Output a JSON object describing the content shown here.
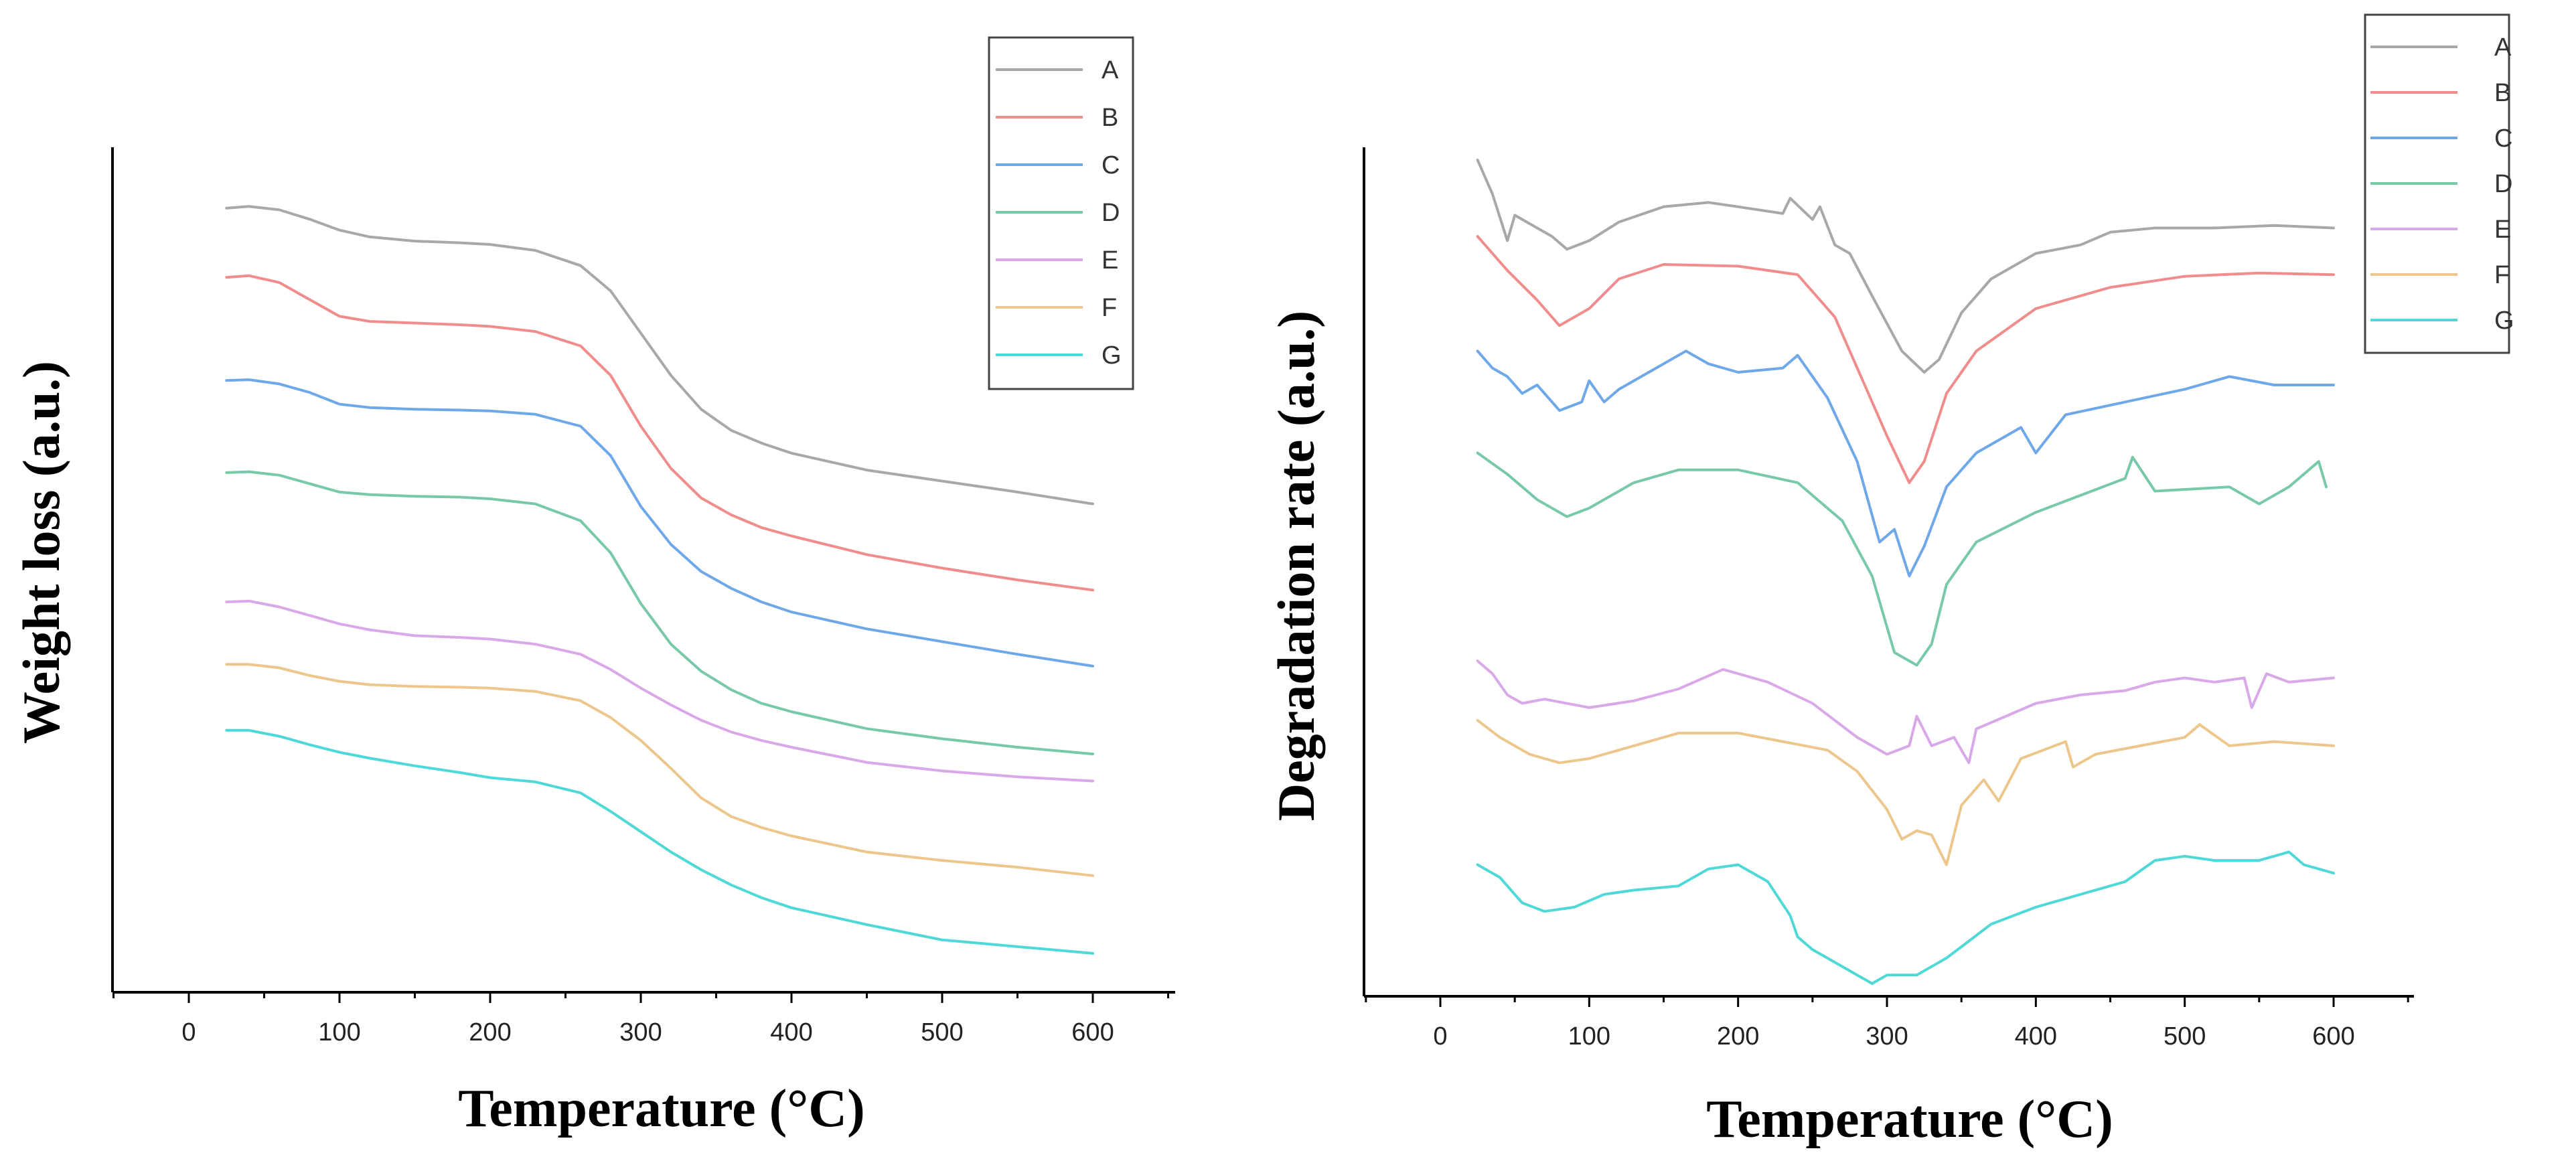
{
  "chart_data": [
    {
      "type": "line",
      "xlabel": "Temperature (°C)",
      "ylabel": "Weight loss (a.u.)",
      "xlim": [
        -50,
        650
      ],
      "ylim": [
        0,
        10
      ],
      "xticks": [
        0,
        100,
        200,
        300,
        400,
        500,
        600
      ],
      "xtick_labels": [
        "0",
        "100",
        "200",
        "300",
        "400",
        "500",
        "600"
      ],
      "legend_position": "top-right",
      "series": [
        {
          "name": "A",
          "color": "#a8a8a8",
          "x": [
            25,
            40,
            60,
            80,
            100,
            120,
            150,
            180,
            200,
            230,
            260,
            280,
            300,
            320,
            340,
            360,
            380,
            400,
            450,
            500,
            550,
            600
          ],
          "y": [
            9.28,
            9.3,
            9.26,
            9.15,
            9.02,
            8.94,
            8.89,
            8.87,
            8.85,
            8.78,
            8.6,
            8.3,
            7.8,
            7.3,
            6.9,
            6.65,
            6.5,
            6.38,
            6.18,
            6.05,
            5.92,
            5.78
          ]
        },
        {
          "name": "B",
          "color": "#f08c8c",
          "x": [
            25,
            40,
            60,
            80,
            100,
            120,
            150,
            180,
            200,
            230,
            260,
            280,
            300,
            320,
            340,
            360,
            380,
            400,
            450,
            500,
            550,
            600
          ],
          "y": [
            8.46,
            8.48,
            8.4,
            8.2,
            8.0,
            7.94,
            7.92,
            7.9,
            7.88,
            7.82,
            7.65,
            7.3,
            6.7,
            6.2,
            5.85,
            5.65,
            5.5,
            5.4,
            5.18,
            5.02,
            4.88,
            4.76
          ]
        },
        {
          "name": "C",
          "color": "#6fa8e8",
          "x": [
            25,
            40,
            60,
            80,
            100,
            120,
            150,
            180,
            200,
            230,
            260,
            280,
            300,
            320,
            340,
            360,
            380,
            400,
            450,
            500,
            550,
            600
          ],
          "y": [
            7.24,
            7.25,
            7.2,
            7.1,
            6.96,
            6.92,
            6.9,
            6.89,
            6.88,
            6.84,
            6.7,
            6.35,
            5.75,
            5.3,
            4.98,
            4.78,
            4.62,
            4.5,
            4.3,
            4.15,
            4.0,
            3.86
          ]
        },
        {
          "name": "D",
          "color": "#77c9a8",
          "x": [
            25,
            40,
            60,
            80,
            100,
            120,
            150,
            180,
            200,
            230,
            260,
            280,
            300,
            320,
            340,
            360,
            380,
            400,
            450,
            500,
            550,
            600
          ],
          "y": [
            6.15,
            6.16,
            6.12,
            6.02,
            5.92,
            5.89,
            5.87,
            5.86,
            5.84,
            5.78,
            5.58,
            5.2,
            4.6,
            4.12,
            3.8,
            3.58,
            3.42,
            3.32,
            3.12,
            3.0,
            2.9,
            2.82
          ]
        },
        {
          "name": "E",
          "color": "#d9a8e8",
          "x": [
            25,
            40,
            60,
            80,
            100,
            120,
            150,
            180,
            200,
            230,
            260,
            280,
            300,
            320,
            340,
            360,
            380,
            400,
            450,
            500,
            550,
            600
          ],
          "y": [
            4.62,
            4.63,
            4.56,
            4.46,
            4.36,
            4.29,
            4.22,
            4.2,
            4.18,
            4.12,
            4.0,
            3.82,
            3.6,
            3.4,
            3.22,
            3.08,
            2.98,
            2.9,
            2.72,
            2.62,
            2.55,
            2.5
          ]
        },
        {
          "name": "F",
          "color": "#ecc68a",
          "x": [
            25,
            40,
            60,
            80,
            100,
            120,
            150,
            180,
            200,
            230,
            260,
            280,
            300,
            320,
            340,
            360,
            380,
            400,
            450,
            500,
            550,
            600
          ],
          "y": [
            3.88,
            3.88,
            3.84,
            3.75,
            3.68,
            3.64,
            3.62,
            3.61,
            3.6,
            3.56,
            3.45,
            3.25,
            2.98,
            2.65,
            2.3,
            2.08,
            1.95,
            1.85,
            1.66,
            1.56,
            1.48,
            1.38
          ]
        },
        {
          "name": "G",
          "color": "#4fd8d8",
          "x": [
            25,
            40,
            60,
            80,
            100,
            120,
            150,
            180,
            200,
            230,
            260,
            280,
            300,
            320,
            340,
            360,
            380,
            400,
            450,
            500,
            550,
            600
          ],
          "y": [
            3.1,
            3.1,
            3.03,
            2.93,
            2.84,
            2.77,
            2.68,
            2.6,
            2.54,
            2.49,
            2.36,
            2.14,
            1.9,
            1.66,
            1.45,
            1.27,
            1.12,
            1.0,
            0.8,
            0.62,
            0.54,
            0.46
          ]
        }
      ]
    },
    {
      "type": "line",
      "xlabel": "Temperature (°C)",
      "ylabel": "Degradation rate (a.u.)",
      "xlim": [
        -50,
        650
      ],
      "ylim": [
        0,
        10
      ],
      "xticks": [
        0,
        100,
        200,
        300,
        400,
        500,
        600
      ],
      "xtick_labels": [
        "0",
        "100",
        "200",
        "300",
        "400",
        "500",
        "600"
      ],
      "legend_position": "top-right",
      "series": [
        {
          "name": "A",
          "color": "#a8a8a8",
          "x": [
            25,
            35,
            45,
            50,
            60,
            75,
            85,
            100,
            120,
            150,
            180,
            200,
            230,
            235,
            250,
            255,
            265,
            275,
            290,
            310,
            325,
            335,
            350,
            370,
            400,
            430,
            450,
            480,
            520,
            560,
            600
          ],
          "y": [
            9.85,
            9.45,
            8.9,
            9.2,
            9.1,
            8.95,
            8.8,
            8.9,
            9.12,
            9.3,
            9.35,
            9.3,
            9.22,
            9.4,
            9.15,
            9.3,
            8.85,
            8.75,
            8.25,
            7.6,
            7.35,
            7.5,
            8.05,
            8.45,
            8.75,
            8.85,
            9.0,
            9.05,
            9.05,
            9.08,
            9.05
          ]
        },
        {
          "name": "B",
          "color": "#f08c8c",
          "x": [
            25,
            45,
            65,
            80,
            100,
            120,
            150,
            200,
            240,
            265,
            285,
            300,
            315,
            325,
            340,
            360,
            400,
            450,
            500,
            550,
            600
          ],
          "y": [
            8.95,
            8.55,
            8.2,
            7.9,
            8.1,
            8.45,
            8.62,
            8.6,
            8.5,
            8.0,
            7.2,
            6.6,
            6.05,
            6.3,
            7.1,
            7.6,
            8.1,
            8.35,
            8.48,
            8.52,
            8.5
          ]
        },
        {
          "name": "C",
          "color": "#6fa8e8",
          "x": [
            25,
            35,
            45,
            55,
            65,
            80,
            95,
            100,
            110,
            120,
            140,
            165,
            180,
            200,
            230,
            240,
            260,
            280,
            295,
            305,
            315,
            325,
            340,
            360,
            390,
            400,
            420,
            460,
            500,
            530,
            560,
            600
          ],
          "y": [
            7.6,
            7.4,
            7.3,
            7.1,
            7.2,
            6.9,
            7.0,
            7.25,
            7.0,
            7.15,
            7.35,
            7.6,
            7.45,
            7.35,
            7.4,
            7.55,
            7.05,
            6.3,
            5.35,
            5.5,
            4.95,
            5.3,
            6.0,
            6.4,
            6.7,
            6.4,
            6.85,
            7.0,
            7.15,
            7.3,
            7.2,
            7.2
          ]
        },
        {
          "name": "D",
          "color": "#77c9a8",
          "x": [
            25,
            45,
            65,
            85,
            100,
            130,
            160,
            200,
            240,
            270,
            290,
            305,
            320,
            330,
            340,
            360,
            400,
            430,
            460,
            465,
            480,
            530,
            550,
            570,
            590,
            595
          ],
          "y": [
            6.4,
            6.15,
            5.85,
            5.65,
            5.75,
            6.05,
            6.2,
            6.2,
            6.05,
            5.6,
            4.95,
            4.05,
            3.9,
            4.15,
            4.85,
            5.35,
            5.7,
            5.9,
            6.1,
            6.35,
            5.95,
            6.0,
            5.8,
            6.0,
            6.3,
            6.0
          ]
        },
        {
          "name": "E",
          "color": "#d9a8e8",
          "x": [
            25,
            35,
            45,
            55,
            70,
            100,
            130,
            160,
            190,
            220,
            250,
            280,
            300,
            315,
            320,
            330,
            345,
            355,
            360,
            380,
            400,
            430,
            460,
            480,
            500,
            520,
            540,
            545,
            555,
            570,
            600
          ],
          "y": [
            3.95,
            3.8,
            3.55,
            3.45,
            3.5,
            3.4,
            3.48,
            3.62,
            3.85,
            3.7,
            3.45,
            3.05,
            2.85,
            2.95,
            3.3,
            2.95,
            3.05,
            2.75,
            3.15,
            3.3,
            3.45,
            3.55,
            3.6,
            3.7,
            3.75,
            3.7,
            3.75,
            3.4,
            3.8,
            3.7,
            3.75
          ]
        },
        {
          "name": "F",
          "color": "#ecc68a",
          "x": [
            25,
            40,
            60,
            80,
            100,
            130,
            160,
            200,
            230,
            260,
            280,
            300,
            310,
            320,
            330,
            340,
            350,
            365,
            375,
            390,
            420,
            425,
            440,
            470,
            500,
            510,
            530,
            560,
            600
          ],
          "y": [
            3.25,
            3.05,
            2.85,
            2.75,
            2.8,
            2.95,
            3.1,
            3.1,
            3.0,
            2.9,
            2.65,
            2.2,
            1.85,
            1.95,
            1.9,
            1.55,
            2.25,
            2.55,
            2.3,
            2.8,
            3.0,
            2.7,
            2.85,
            2.95,
            3.05,
            3.2,
            2.95,
            3.0,
            2.95
          ]
        },
        {
          "name": "G",
          "color": "#4fd8d8",
          "x": [
            25,
            40,
            55,
            70,
            90,
            110,
            130,
            160,
            180,
            200,
            220,
            235,
            240,
            250,
            270,
            290,
            300,
            320,
            340,
            355,
            370,
            400,
            430,
            460,
            480,
            500,
            520,
            550,
            570,
            580,
            600
          ],
          "y": [
            1.55,
            1.4,
            1.1,
            1.0,
            1.05,
            1.2,
            1.25,
            1.3,
            1.5,
            1.55,
            1.35,
            0.95,
            0.7,
            0.55,
            0.35,
            0.15,
            0.25,
            0.25,
            0.45,
            0.65,
            0.85,
            1.05,
            1.2,
            1.35,
            1.6,
            1.65,
            1.6,
            1.6,
            1.7,
            1.55,
            1.45
          ]
        }
      ]
    }
  ]
}
